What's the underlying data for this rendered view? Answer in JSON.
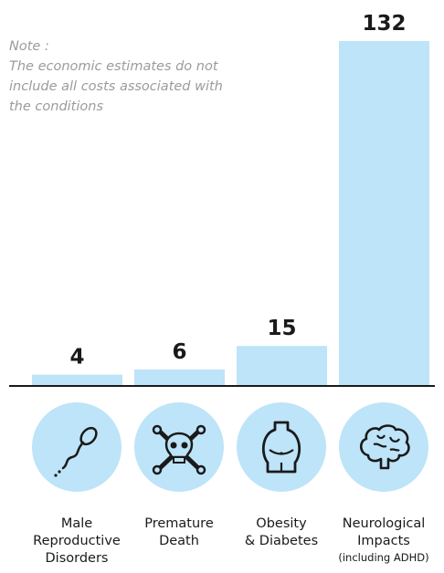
{
  "note": {
    "lines": [
      "Note :",
      "The economic estimates do not",
      "include all costs associated with",
      "the conditions"
    ]
  },
  "chart_data": {
    "type": "bar",
    "categories": [
      "Male Reproductive Disorders",
      "Premature Death",
      "Obesity & Diabetes",
      "Neurological Impacts (including ADHD)"
    ],
    "values": [
      4,
      6,
      15,
      132
    ],
    "value_labels": [
      "4",
      "6",
      "15",
      "132"
    ],
    "category_lines": [
      [
        "Male",
        "Reproductive",
        "Disorders"
      ],
      [
        "Premature",
        "Death"
      ],
      [
        "Obesity",
        "& Diabetes"
      ],
      [
        "Neurological",
        "Impacts",
        "(including ADHD)"
      ]
    ],
    "icons": [
      "sperm-icon",
      "skull-crossbones-icon",
      "obese-body-icon",
      "brain-icon"
    ],
    "title": "",
    "xlabel": "",
    "ylabel": "",
    "ylim": [
      0,
      132
    ],
    "grid": false,
    "legend": "none",
    "colors": {
      "bar": "#bde4f8",
      "icon_bg": "#bde4f8",
      "axis": "#1a1a1a",
      "note": "#9b9b9b"
    }
  }
}
